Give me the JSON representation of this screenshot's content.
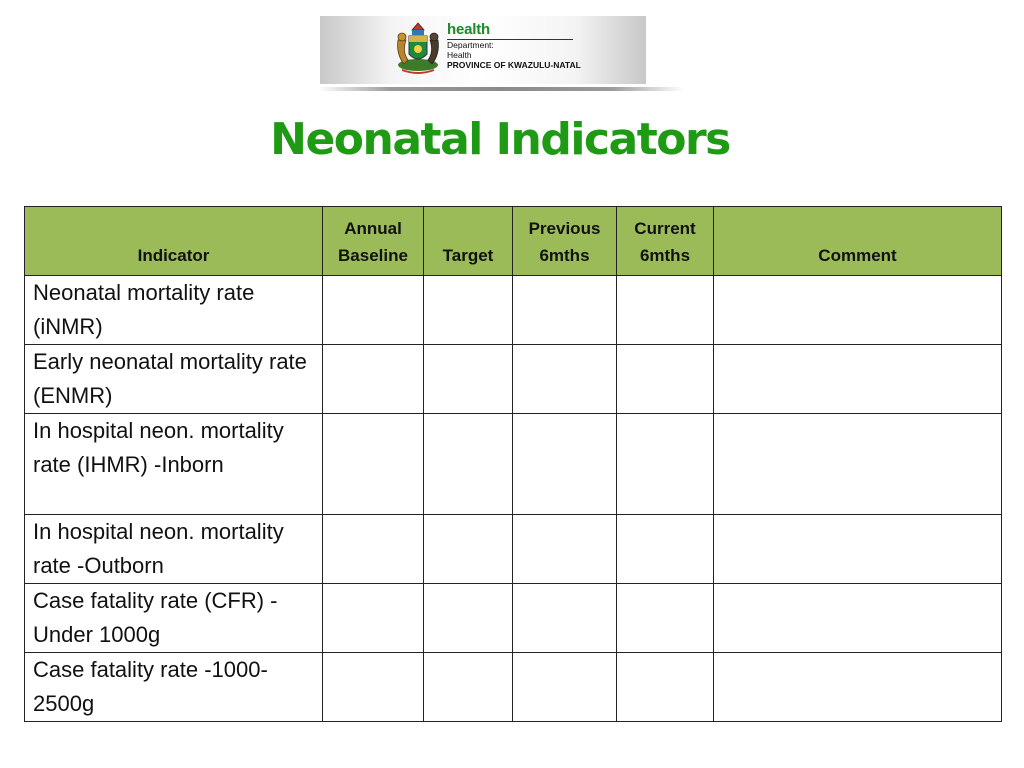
{
  "header": {
    "logo": {
      "brand": "health",
      "line1": "Department:",
      "line2": "Health",
      "line3": "PROVINCE OF KWAZULU-NATAL"
    },
    "title": "Neonatal Indicators"
  },
  "table": {
    "columns": [
      {
        "key": "indicator",
        "label": "Indicator"
      },
      {
        "key": "annual_baseline",
        "label": "Annual Baseline"
      },
      {
        "key": "target",
        "label": "Target"
      },
      {
        "key": "previous_6mths",
        "label": "Previous 6mths"
      },
      {
        "key": "current_6mths",
        "label": "Current 6mths"
      },
      {
        "key": "comment",
        "label": "Comment"
      }
    ],
    "rows": [
      {
        "indicator": "Neonatal mortality rate (iNMR)",
        "annual_baseline": "",
        "target": "",
        "previous_6mths": "",
        "current_6mths": "",
        "comment": ""
      },
      {
        "indicator": "Early neonatal mortality rate (ENMR)",
        "annual_baseline": "",
        "target": "",
        "previous_6mths": "",
        "current_6mths": "",
        "comment": ""
      },
      {
        "indicator": "In hospital neon. mortality rate (IHMR) -Inborn",
        "annual_baseline": "",
        "target": "",
        "previous_6mths": "",
        "current_6mths": "",
        "comment": ""
      },
      {
        "indicator": "In hospital neon. mortality rate -Outborn",
        "annual_baseline": "",
        "target": "",
        "previous_6mths": "",
        "current_6mths": "",
        "comment": ""
      },
      {
        "indicator": "Case fatality rate (CFR) -Under 1000g",
        "annual_baseline": "",
        "target": "",
        "previous_6mths": "",
        "current_6mths": "",
        "comment": ""
      },
      {
        "indicator": "Case fatality rate -1000-2500g",
        "annual_baseline": "",
        "target": "",
        "previous_6mths": "",
        "current_6mths": "",
        "comment": ""
      }
    ]
  },
  "colors": {
    "title": "#1e9a14",
    "header_fill": "#9bbb59",
    "grid": "#222222"
  }
}
